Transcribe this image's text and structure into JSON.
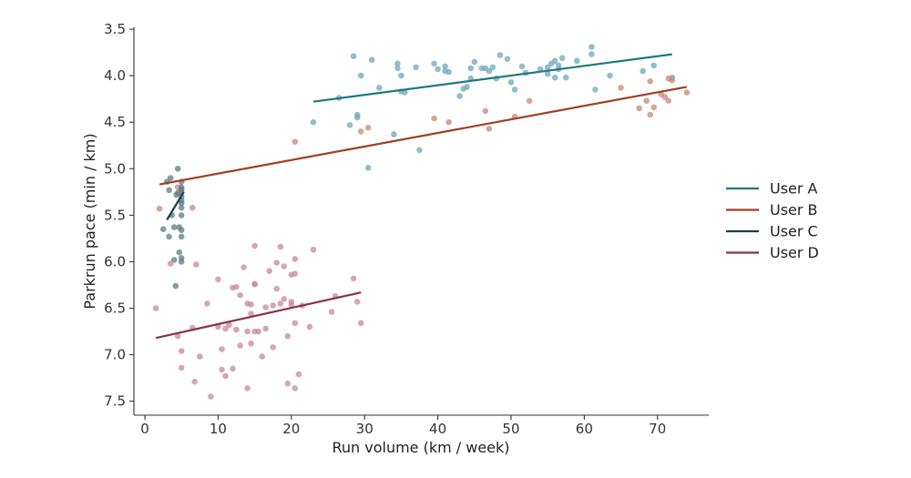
{
  "chart_data": {
    "type": "scatter",
    "xlabel": "Run volume (km / week)",
    "ylabel": "Parkrun pace (min / km)",
    "xlim": [
      -1.5,
      77
    ],
    "ylim": [
      7.65,
      3.48
    ],
    "y_inverted": true,
    "x_ticks": [
      "0",
      "10",
      "20",
      "30",
      "40",
      "50",
      "60",
      "70"
    ],
    "y_ticks": [
      "3.5",
      "4.0",
      "4.5",
      "5.0",
      "5.5",
      "6.0",
      "6.5",
      "7.0",
      "7.5"
    ],
    "grid": false,
    "legend_position": "right",
    "series": [
      {
        "name": "User A",
        "line_color": "#1a7a80",
        "point_color": "#6ea7b9",
        "trend": [
          [
            23,
            4.28
          ],
          [
            72,
            3.77
          ]
        ],
        "points": [
          [
            23,
            4.5
          ],
          [
            26.5,
            4.24
          ],
          [
            28,
            4.53
          ],
          [
            28.5,
            3.79
          ],
          [
            29,
            4.45
          ],
          [
            29,
            4.42
          ],
          [
            29.5,
            4.0
          ],
          [
            30.5,
            4.99
          ],
          [
            31,
            3.83
          ],
          [
            32,
            4.13
          ],
          [
            34,
            4.63
          ],
          [
            34.5,
            3.87
          ],
          [
            34.5,
            3.92
          ],
          [
            35,
            4.17
          ],
          [
            35,
            4.0
          ],
          [
            35.5,
            4.18
          ],
          [
            37,
            3.91
          ],
          [
            37.5,
            4.8
          ],
          [
            39.5,
            3.87
          ],
          [
            40,
            3.93
          ],
          [
            41,
            3.9
          ],
          [
            41,
            3.95
          ],
          [
            41.5,
            3.96
          ],
          [
            43,
            4.22
          ],
          [
            43.5,
            4.14
          ],
          [
            44,
            4.12
          ],
          [
            44.5,
            4.03
          ],
          [
            44.5,
            3.92
          ],
          [
            45,
            3.85
          ],
          [
            46,
            3.92
          ],
          [
            46.5,
            3.92
          ],
          [
            47,
            3.95
          ],
          [
            47.5,
            3.91
          ],
          [
            48,
            4.03
          ],
          [
            48.5,
            3.78
          ],
          [
            49.5,
            3.82
          ],
          [
            50,
            4.07
          ],
          [
            50.5,
            4.15
          ],
          [
            51.5,
            3.9
          ],
          [
            52,
            3.97
          ],
          [
            54,
            3.93
          ],
          [
            55,
            3.98
          ],
          [
            55,
            3.91
          ],
          [
            55.5,
            3.87
          ],
          [
            56,
            4.02
          ],
          [
            56,
            3.84
          ],
          [
            56.5,
            3.89
          ],
          [
            56.5,
            3.93
          ],
          [
            57,
            3.81
          ],
          [
            57.5,
            4.02
          ],
          [
            59,
            3.84
          ],
          [
            61,
            3.69
          ],
          [
            61,
            3.77
          ],
          [
            61.5,
            4.15
          ],
          [
            63.5,
            4.0
          ],
          [
            68,
            3.95
          ],
          [
            69.5,
            3.89
          ],
          [
            72,
            4.02
          ]
        ]
      },
      {
        "name": "User B",
        "line_color": "#9e3f22",
        "point_color": "#c8877a",
        "trend": [
          [
            2,
            5.17
          ],
          [
            74,
            4.12
          ]
        ],
        "points": [
          [
            2,
            5.43
          ],
          [
            4.5,
            5.2
          ],
          [
            6.5,
            5.42
          ],
          [
            20.5,
            4.71
          ],
          [
            29.5,
            4.6
          ],
          [
            30.5,
            4.56
          ],
          [
            39.5,
            4.46
          ],
          [
            41.5,
            4.5
          ],
          [
            46.5,
            4.38
          ],
          [
            47,
            4.57
          ],
          [
            50.5,
            4.44
          ],
          [
            52.5,
            4.27
          ],
          [
            65,
            4.13
          ],
          [
            67.5,
            4.35
          ],
          [
            68.5,
            4.27
          ],
          [
            69,
            4.42
          ],
          [
            69,
            4.06
          ],
          [
            69.5,
            4.34
          ],
          [
            70.5,
            4.2
          ],
          [
            71,
            4.23
          ],
          [
            71.5,
            4.27
          ],
          [
            71.5,
            4.03
          ],
          [
            72,
            4.05
          ],
          [
            74,
            4.18
          ]
        ]
      },
      {
        "name": "User C",
        "line_color": "#1e3d4a",
        "point_color": "#617b80",
        "trend": [
          [
            3,
            5.55
          ],
          [
            5.3,
            5.25
          ]
        ],
        "points": [
          [
            2.5,
            5.65
          ],
          [
            3,
            5.14
          ],
          [
            3.3,
            5.73
          ],
          [
            3.3,
            5.23
          ],
          [
            3.5,
            5.1
          ],
          [
            3.7,
            5.5
          ],
          [
            4,
            5.98
          ],
          [
            4,
            5.63
          ],
          [
            4.2,
            6.26
          ],
          [
            4.3,
            5.28
          ],
          [
            4.5,
            5.0
          ],
          [
            4.5,
            5.26
          ],
          [
            4.7,
            5.9
          ],
          [
            4.7,
            5.63
          ],
          [
            5,
            5.14
          ],
          [
            5,
            5.2
          ],
          [
            5,
            5.22
          ],
          [
            5,
            5.25
          ],
          [
            5,
            5.3
          ],
          [
            5,
            5.34
          ],
          [
            5,
            5.37
          ],
          [
            5,
            5.42
          ],
          [
            5,
            5.5
          ],
          [
            5,
            5.66
          ],
          [
            5,
            5.73
          ],
          [
            5,
            5.96
          ],
          [
            5,
            6.0
          ]
        ]
      },
      {
        "name": "User D",
        "line_color": "#8b3346",
        "point_color": "#c88a97",
        "trend": [
          [
            1.5,
            6.82
          ],
          [
            29.5,
            6.33
          ]
        ],
        "points": [
          [
            1.5,
            6.5
          ],
          [
            3.5,
            6.02
          ],
          [
            4.5,
            6.8
          ],
          [
            5,
            6.96
          ],
          [
            5,
            7.14
          ],
          [
            6.5,
            6.71
          ],
          [
            6.8,
            7.29
          ],
          [
            7,
            6.03
          ],
          [
            7.5,
            7.02
          ],
          [
            8.5,
            6.45
          ],
          [
            9,
            7.45
          ],
          [
            10,
            6.19
          ],
          [
            10,
            6.7
          ],
          [
            10.5,
            7.16
          ],
          [
            10.5,
            6.94
          ],
          [
            11,
            7.23
          ],
          [
            11,
            6.72
          ],
          [
            11.5,
            6.68
          ],
          [
            12,
            6.28
          ],
          [
            12,
            7.15
          ],
          [
            12.5,
            6.73
          ],
          [
            12.5,
            6.27
          ],
          [
            13,
            6.9
          ],
          [
            13,
            6.36
          ],
          [
            13.5,
            6.06
          ],
          [
            14,
            6.45
          ],
          [
            14,
            6.75
          ],
          [
            14,
            7.36
          ],
          [
            14.5,
            6.56
          ],
          [
            14.5,
            6.88
          ],
          [
            14.5,
            6.46
          ],
          [
            15,
            6.24
          ],
          [
            15,
            6.75
          ],
          [
            15,
            6.24
          ],
          [
            15,
            5.83
          ],
          [
            15.5,
            6.75
          ],
          [
            16,
            7.02
          ],
          [
            16.5,
            6.49
          ],
          [
            16.5,
            6.72
          ],
          [
            17,
            6.1
          ],
          [
            17.5,
            6.92
          ],
          [
            17.5,
            6.47
          ],
          [
            18,
            6.29
          ],
          [
            18,
            6.01
          ],
          [
            18.5,
            5.84
          ],
          [
            18.5,
            6.45
          ],
          [
            19,
            6.05
          ],
          [
            19,
            6.4
          ],
          [
            19.5,
            6.8
          ],
          [
            19.5,
            7.31
          ],
          [
            20,
            6.14
          ],
          [
            20,
            6.43
          ],
          [
            20,
            6.46
          ],
          [
            20.5,
            7.36
          ],
          [
            20.5,
            6.13
          ],
          [
            20.5,
            5.97
          ],
          [
            20.5,
            6.66
          ],
          [
            21,
            7.21
          ],
          [
            21.5,
            6.47
          ],
          [
            22.5,
            6.7
          ],
          [
            23,
            5.87
          ],
          [
            25.5,
            6.54
          ],
          [
            26,
            6.37
          ],
          [
            28.5,
            6.18
          ],
          [
            29,
            6.43
          ],
          [
            29.5,
            6.66
          ]
        ]
      }
    ]
  }
}
